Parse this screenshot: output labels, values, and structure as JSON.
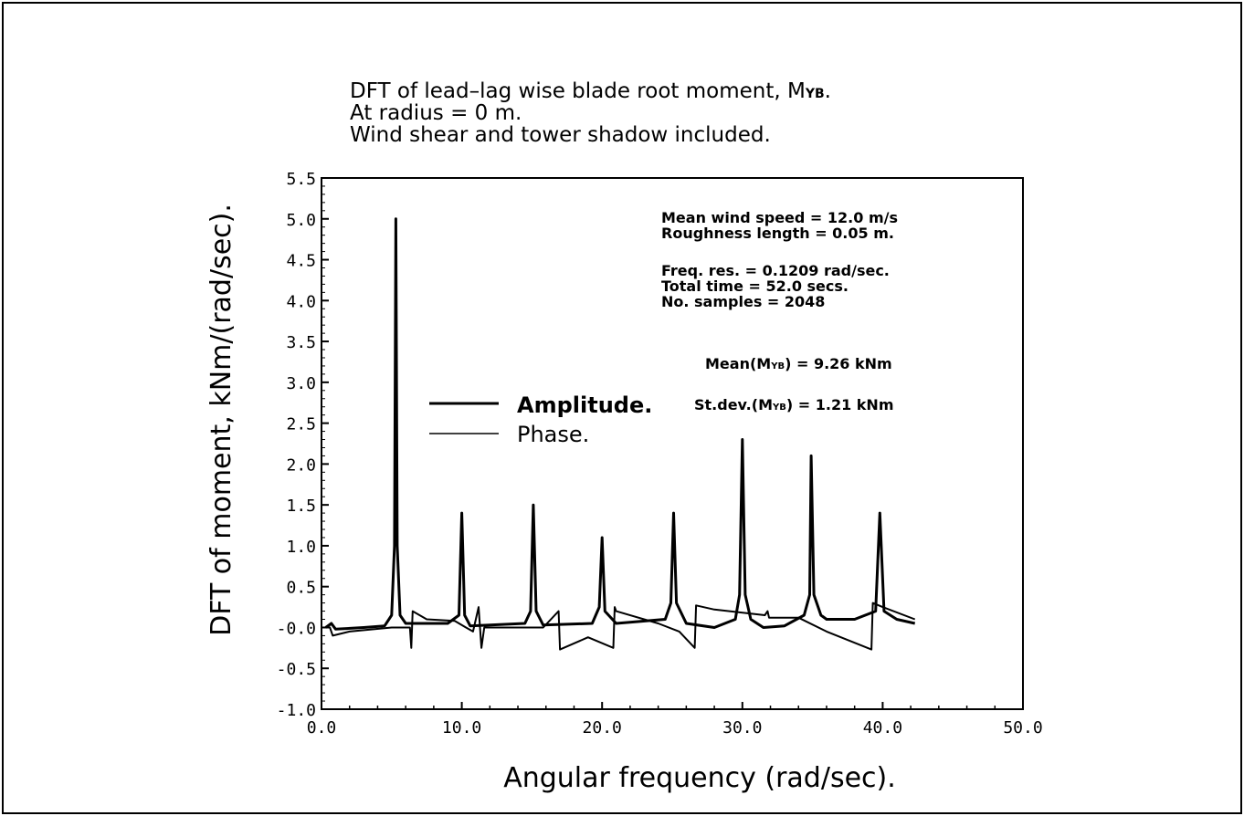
{
  "chart_data": {
    "type": "line",
    "title_lines": [
      "DFT of lead–lag wise blade root moment, M",
      "At radius = 0 m.",
      "Wind shear and tower shadow included."
    ],
    "title_subscript": "YB",
    "title_suffix": ".",
    "xlabel": "Angular frequency (rad/sec).",
    "ylabel": "DFT of moment, kNm/(rad/sec).",
    "xlim": [
      0,
      50
    ],
    "ylim": [
      -1.0,
      5.5
    ],
    "xticks": [
      "0.0",
      "10.0",
      "20.0",
      "30.0",
      "40.0",
      "50.0"
    ],
    "yticks": [
      "5.5",
      "5.0",
      "4.5",
      "4.0",
      "3.5",
      "3.0",
      "2.5",
      "2.0",
      "1.5",
      "1.0",
      "0.5",
      "-0.0",
      "-0.5",
      "-1.0"
    ],
    "grid": false,
    "legend": {
      "placement": "center-left",
      "entries": [
        "Amplitude.",
        "Phase."
      ]
    },
    "annotations": {
      "wind_speed": "Mean wind speed = 12.0 m/s",
      "roughness": "Roughness length = 0.05 m.",
      "freq_res": "Freq. res. = 0.1209 rad/sec.",
      "total_time": "Total time = 52.0 secs.",
      "samples": "No. samples = 2048",
      "mean_prefix": "Mean(M",
      "mean_suffix": ") = 9.26 kNm",
      "stdev_prefix": "St.dev.(M",
      "stdev_suffix": ") = 1.21 kNm",
      "sub": "YB"
    },
    "series": [
      {
        "name": "Amplitude.",
        "x": [
          0.3,
          0.7,
          1,
          3,
          4.5,
          5.0,
          5.2,
          5.3,
          5.4,
          5.6,
          6,
          9,
          9.8,
          10.0,
          10.2,
          10.6,
          14.5,
          14.9,
          15.1,
          15.3,
          15.8,
          19.3,
          19.8,
          20.0,
          20.2,
          21,
          24.5,
          24.9,
          25.1,
          25.3,
          26,
          28,
          29.5,
          29.8,
          30.0,
          30.2,
          30.6,
          31.5,
          33,
          34.4,
          34.8,
          34.9,
          35.1,
          35.6,
          36,
          38,
          39.5,
          39.8,
          40.1,
          41,
          42.3
        ],
        "y": [
          0.0,
          0.05,
          -0.02,
          0.0,
          0.02,
          0.15,
          1.0,
          5.0,
          1.0,
          0.15,
          0.05,
          0.05,
          0.15,
          1.4,
          0.15,
          0.02,
          0.05,
          0.2,
          1.5,
          0.2,
          0.03,
          0.05,
          0.25,
          1.1,
          0.2,
          0.05,
          0.1,
          0.3,
          1.4,
          0.3,
          0.05,
          0.0,
          0.1,
          0.4,
          2.3,
          0.4,
          0.1,
          0.0,
          0.02,
          0.15,
          0.4,
          2.1,
          0.4,
          0.15,
          0.1,
          0.1,
          0.2,
          1.4,
          0.2,
          0.1,
          0.05
        ]
      },
      {
        "name": "Phase.",
        "x": [
          0,
          0.6,
          0.8,
          2,
          5,
          6.3,
          6.4,
          6.5,
          7.5,
          9.5,
          10.3,
          10.8,
          11.2,
          11.4,
          11.6,
          15.8,
          16.9,
          17.0,
          19,
          20.8,
          20.9,
          21.0,
          24,
          25.5,
          26.6,
          26.7,
          28,
          31.6,
          31.8,
          31.9,
          34,
          36,
          39.2,
          39.3,
          40,
          42.3
        ],
        "y": [
          0.0,
          0.0,
          -0.1,
          -0.05,
          0.0,
          0.0,
          -0.25,
          0.2,
          0.1,
          0.08,
          0.0,
          -0.05,
          0.25,
          -0.25,
          0.0,
          0.0,
          0.2,
          -0.27,
          -0.12,
          -0.25,
          0.25,
          0.2,
          0.05,
          -0.05,
          -0.25,
          0.27,
          0.22,
          0.15,
          0.2,
          0.12,
          0.12,
          -0.05,
          -0.27,
          0.3,
          0.25,
          0.1
        ]
      }
    ]
  }
}
